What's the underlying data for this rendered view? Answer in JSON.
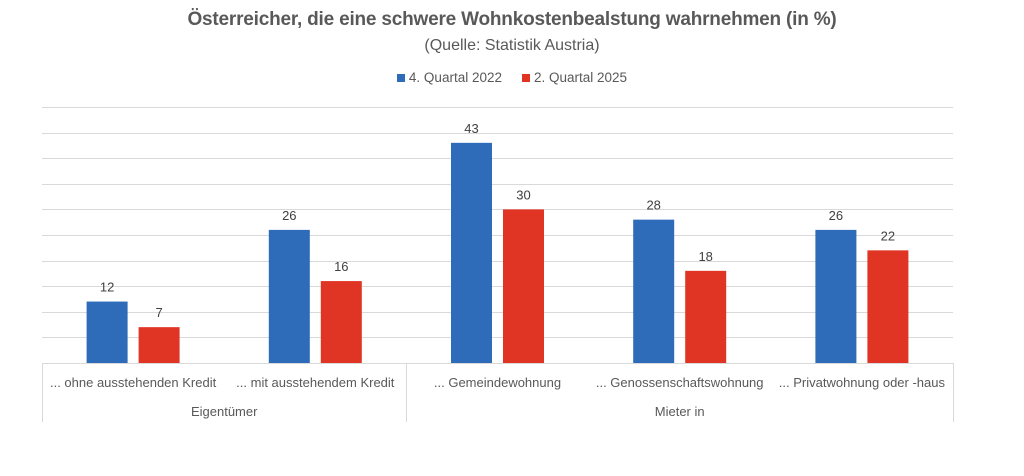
{
  "chart_data": {
    "type": "bar",
    "title": "Österreicher, die eine schwere Wohnkostenbealstung wahrnehmen (in %)",
    "subtitle": "(Quelle: Statistik Austria)",
    "xlabel": "",
    "ylabel": "",
    "ylim": [
      0,
      50
    ],
    "grid_step": 5,
    "grid": true,
    "y_tick_labels_visible": false,
    "legend_position": "top",
    "categories": [
      "... ohne ausstehenden Kredit",
      "... mit ausstehendem Kredit",
      "... Gemeindewohnung",
      "... Genossenschaftswohnung",
      "... Privatwohnung oder -haus"
    ],
    "category_groups": [
      {
        "label": "Eigentümer",
        "span": 2
      },
      {
        "label": "Mieter in",
        "span": 3
      }
    ],
    "series": [
      {
        "name": "4. Quartal 2022",
        "color": "#2E6BB8",
        "values": [
          12,
          26,
          43,
          28,
          26
        ]
      },
      {
        "name": "2. Quartal 2025",
        "color": "#E03424",
        "values": [
          7,
          16,
          30,
          18,
          22
        ]
      }
    ]
  }
}
